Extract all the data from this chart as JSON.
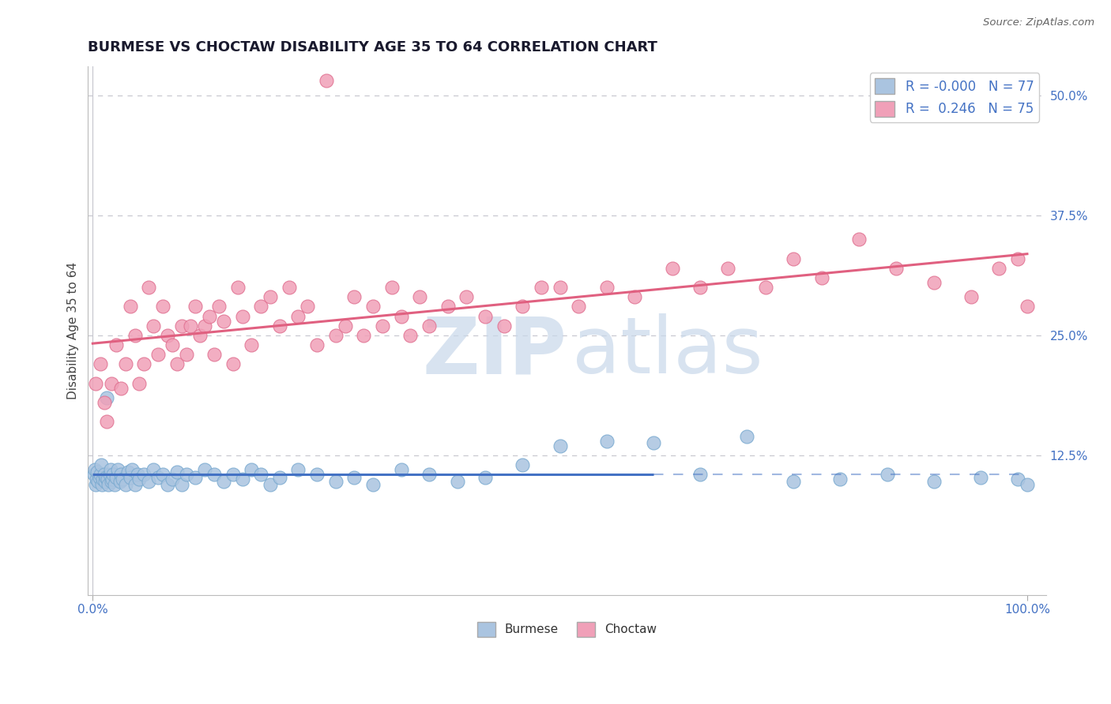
{
  "title": "BURMESE VS CHOCTAW DISABILITY AGE 35 TO 64 CORRELATION CHART",
  "source_text": "Source: ZipAtlas.com",
  "ylabel": "Disability Age 35 to 64",
  "burmese_color": "#aac4e0",
  "burmese_edge_color": "#7aaad0",
  "choctaw_color": "#f0a0b8",
  "choctaw_edge_color": "#e07090",
  "burmese_line_color": "#4472c4",
  "choctaw_line_color": "#e06080",
  "burmese_R": -0.0,
  "burmese_N": 77,
  "choctaw_R": 0.246,
  "choctaw_N": 75,
  "watermark_zip": "ZIP",
  "watermark_atlas": "atlas",
  "background_color": "#ffffff",
  "grid_color": "#c8c8d0",
  "xlim": [
    0,
    100
  ],
  "ylim": [
    0,
    50
  ],
  "title_fontsize": 13,
  "tick_fontsize": 11,
  "legend_fontsize": 12,
  "burmese_x": [
    0.1,
    0.2,
    0.3,
    0.4,
    0.5,
    0.6,
    0.7,
    0.8,
    0.9,
    1.0,
    1.1,
    1.2,
    1.3,
    1.4,
    1.5,
    1.6,
    1.7,
    1.8,
    1.9,
    2.0,
    2.1,
    2.2,
    2.3,
    2.5,
    2.7,
    2.9,
    3.0,
    3.2,
    3.5,
    3.8,
    4.0,
    4.2,
    4.5,
    4.8,
    5.0,
    5.5,
    6.0,
    6.5,
    7.0,
    7.5,
    8.0,
    8.5,
    9.0,
    9.5,
    10.0,
    11.0,
    12.0,
    13.0,
    14.0,
    15.0,
    16.0,
    17.0,
    18.0,
    19.0,
    20.0,
    22.0,
    24.0,
    26.0,
    28.0,
    30.0,
    33.0,
    36.0,
    39.0,
    42.0,
    46.0,
    50.0,
    55.0,
    60.0,
    65.0,
    70.0,
    75.0,
    80.0,
    85.0,
    90.0,
    95.0,
    99.0,
    100.0
  ],
  "burmese_y": [
    10.5,
    11.0,
    9.5,
    10.0,
    10.8,
    9.8,
    10.2,
    10.5,
    11.5,
    9.5,
    10.0,
    10.5,
    9.8,
    10.2,
    18.5,
    10.0,
    9.5,
    10.5,
    11.0,
    9.8,
    10.0,
    10.5,
    9.5,
    10.2,
    11.0,
    9.8,
    10.5,
    10.0,
    9.5,
    10.8,
    10.2,
    11.0,
    9.5,
    10.5,
    10.0,
    10.5,
    9.8,
    11.0,
    10.2,
    10.5,
    9.5,
    10.0,
    10.8,
    9.5,
    10.5,
    10.2,
    11.0,
    10.5,
    9.8,
    10.5,
    10.0,
    11.0,
    10.5,
    9.5,
    10.2,
    11.0,
    10.5,
    9.8,
    10.2,
    9.5,
    11.0,
    10.5,
    9.8,
    10.2,
    11.5,
    13.5,
    14.0,
    13.8,
    10.5,
    14.5,
    9.8,
    10.0,
    10.5,
    9.8,
    10.2,
    10.0,
    9.5
  ],
  "choctaw_x": [
    0.3,
    0.8,
    1.2,
    1.5,
    2.0,
    2.5,
    3.0,
    3.5,
    4.0,
    4.5,
    5.0,
    5.5,
    6.0,
    6.5,
    7.0,
    7.5,
    8.0,
    8.5,
    9.0,
    9.5,
    10.0,
    10.5,
    11.0,
    11.5,
    12.0,
    12.5,
    13.0,
    13.5,
    14.0,
    15.0,
    15.5,
    16.0,
    17.0,
    18.0,
    19.0,
    20.0,
    21.0,
    22.0,
    23.0,
    24.0,
    25.0,
    26.0,
    27.0,
    28.0,
    29.0,
    30.0,
    31.0,
    32.0,
    33.0,
    34.0,
    35.0,
    36.0,
    38.0,
    40.0,
    42.0,
    44.0,
    46.0,
    48.0,
    50.0,
    52.0,
    55.0,
    58.0,
    62.0,
    65.0,
    68.0,
    72.0,
    75.0,
    78.0,
    82.0,
    86.0,
    90.0,
    94.0,
    97.0,
    99.0,
    100.0
  ],
  "choctaw_y": [
    20.0,
    22.0,
    18.0,
    16.0,
    20.0,
    24.0,
    19.5,
    22.0,
    28.0,
    25.0,
    20.0,
    22.0,
    30.0,
    26.0,
    23.0,
    28.0,
    25.0,
    24.0,
    22.0,
    26.0,
    23.0,
    26.0,
    28.0,
    25.0,
    26.0,
    27.0,
    23.0,
    28.0,
    26.5,
    22.0,
    30.0,
    27.0,
    24.0,
    28.0,
    29.0,
    26.0,
    30.0,
    27.0,
    28.0,
    24.0,
    51.5,
    25.0,
    26.0,
    29.0,
    25.0,
    28.0,
    26.0,
    30.0,
    27.0,
    25.0,
    29.0,
    26.0,
    28.0,
    29.0,
    27.0,
    26.0,
    28.0,
    30.0,
    30.0,
    28.0,
    30.0,
    29.0,
    32.0,
    30.0,
    32.0,
    30.0,
    33.0,
    31.0,
    35.0,
    32.0,
    30.5,
    29.0,
    32.0,
    33.0,
    28.0
  ]
}
